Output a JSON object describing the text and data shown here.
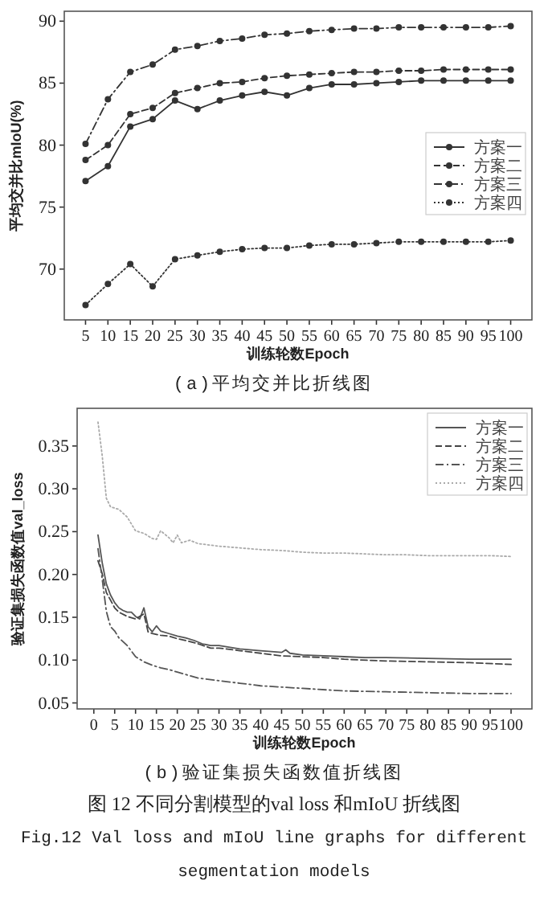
{
  "chart_data": [
    {
      "type": "line",
      "title": "(a)平均交并比折线图",
      "xlabel": "训练轮数Epoch",
      "ylabel": "平均交并比mIoU(%)",
      "x": [
        5,
        10,
        15,
        20,
        25,
        30,
        35,
        40,
        45,
        50,
        55,
        60,
        65,
        70,
        75,
        80,
        85,
        90,
        95,
        100
      ],
      "xlim": [
        0.25,
        104.75
      ],
      "xticks": [
        5,
        10,
        15,
        20,
        25,
        30,
        35,
        40,
        45,
        50,
        55,
        60,
        65,
        70,
        75,
        80,
        85,
        90,
        95,
        100
      ],
      "ylim": [
        65.9,
        90.8
      ],
      "yticks": [
        70,
        75,
        80,
        85,
        90
      ],
      "legend": "right",
      "marker": "circle",
      "series": [
        {
          "name": "方案一",
          "color": "#333333",
          "line_style": "solid",
          "values": [
            77.1,
            78.3,
            81.5,
            82.1,
            83.6,
            82.9,
            83.6,
            84.0,
            84.3,
            84.0,
            84.6,
            84.9,
            84.9,
            85.0,
            85.1,
            85.2,
            85.2,
            85.2,
            85.2,
            85.2
          ]
        },
        {
          "name": "方案二",
          "color": "#333333",
          "line_style": "dashed",
          "values": [
            78.8,
            80.0,
            82.5,
            83.0,
            84.2,
            84.6,
            85.0,
            85.1,
            85.4,
            85.6,
            85.7,
            85.8,
            85.9,
            85.9,
            86.0,
            86.0,
            86.1,
            86.1,
            86.1,
            86.1
          ]
        },
        {
          "name": "方案三",
          "color": "#333333",
          "line_style": "dashdot",
          "values": [
            80.1,
            83.7,
            85.9,
            86.5,
            87.7,
            88.0,
            88.4,
            88.6,
            88.9,
            89.0,
            89.2,
            89.3,
            89.4,
            89.4,
            89.5,
            89.5,
            89.5,
            89.5,
            89.5,
            89.6
          ]
        },
        {
          "name": "方案四",
          "color": "#333333",
          "line_style": "dotted",
          "values": [
            67.1,
            68.8,
            70.4,
            68.6,
            70.8,
            71.1,
            71.4,
            71.6,
            71.7,
            71.7,
            71.9,
            72.0,
            72.0,
            72.1,
            72.2,
            72.2,
            72.2,
            72.2,
            72.2,
            72.3
          ]
        }
      ]
    },
    {
      "type": "line",
      "title": "(b)验证集损失函数值折线图",
      "xlabel": "训练轮数Epoch",
      "ylabel": "验证集损失函数值val_loss",
      "xlim": [
        -4,
        105
      ],
      "xticks": [
        0,
        5,
        10,
        15,
        20,
        25,
        30,
        35,
        40,
        45,
        50,
        55,
        60,
        65,
        70,
        75,
        80,
        85,
        90,
        95,
        100
      ],
      "ylim": [
        0.043,
        0.394
      ],
      "yticks": [
        {
          "value": 0.05,
          "label": "0.05"
        },
        {
          "value": 0.1,
          "label": "0.10"
        },
        {
          "value": 0.15,
          "label": "0.15"
        },
        {
          "value": 0.2,
          "label": "0.20"
        },
        {
          "value": 0.25,
          "label": "0.25"
        },
        {
          "value": 0.3,
          "label": "0.30"
        },
        {
          "value": 0.35,
          "label": "0.35"
        }
      ],
      "legend": "top right",
      "annotations": [
        "图 12 不同分割模型的val loss 和mIoU 折线图",
        "Fig.12 Val loss and mIoU line graphs for different segmentation models"
      ],
      "series": [
        {
          "name": "方案一",
          "color": "#555555",
          "line_style": "solid",
          "x": [
            1,
            2,
            3,
            4,
            5,
            6,
            7,
            8,
            9,
            10,
            11,
            12,
            13,
            14,
            15,
            16,
            18,
            20,
            22,
            24,
            26,
            28,
            30,
            35,
            40,
            45,
            46,
            47,
            50,
            55,
            60,
            65,
            70,
            80,
            90,
            100
          ],
          "values": [
            0.246,
            0.214,
            0.189,
            0.176,
            0.167,
            0.161,
            0.158,
            0.156,
            0.156,
            0.151,
            0.148,
            0.161,
            0.139,
            0.133,
            0.14,
            0.134,
            0.131,
            0.128,
            0.126,
            0.123,
            0.119,
            0.117,
            0.117,
            0.113,
            0.111,
            0.109,
            0.112,
            0.108,
            0.106,
            0.105,
            0.104,
            0.103,
            0.103,
            0.102,
            0.101,
            0.101
          ]
        },
        {
          "name": "方案二",
          "color": "#444444",
          "line_style": "dashed",
          "x": [
            1,
            2,
            3,
            4,
            5,
            6,
            8,
            10,
            12,
            13,
            14,
            16,
            18,
            20,
            22,
            25,
            28,
            30,
            35,
            40,
            45,
            50,
            55,
            60,
            70,
            80,
            90,
            100
          ],
          "values": [
            0.216,
            0.201,
            0.179,
            0.17,
            0.161,
            0.156,
            0.151,
            0.148,
            0.154,
            0.133,
            0.131,
            0.129,
            0.128,
            0.125,
            0.123,
            0.119,
            0.114,
            0.114,
            0.111,
            0.108,
            0.105,
            0.104,
            0.103,
            0.101,
            0.099,
            0.098,
            0.097,
            0.095
          ]
        },
        {
          "name": "方案三",
          "color": "#555555",
          "line_style": "dashdot",
          "x": [
            1,
            2,
            3,
            4,
            5,
            6,
            8,
            10,
            12,
            14,
            16,
            18,
            20,
            25,
            30,
            35,
            40,
            50,
            60,
            70,
            80,
            90,
            100
          ],
          "values": [
            0.23,
            0.195,
            0.157,
            0.139,
            0.134,
            0.126,
            0.117,
            0.104,
            0.098,
            0.094,
            0.091,
            0.089,
            0.086,
            0.079,
            0.076,
            0.073,
            0.07,
            0.067,
            0.064,
            0.063,
            0.062,
            0.061,
            0.061
          ]
        },
        {
          "name": "方案四",
          "color": "#aaaaaa",
          "line_style": "dotted",
          "x": [
            1,
            2,
            3,
            4,
            6,
            8,
            10,
            12,
            14,
            15,
            16,
            18,
            19,
            20,
            21,
            23,
            25,
            30,
            35,
            40,
            45,
            50,
            55,
            60,
            65,
            70,
            75,
            80,
            85,
            90,
            95,
            100
          ],
          "values": [
            0.378,
            0.339,
            0.289,
            0.279,
            0.276,
            0.267,
            0.251,
            0.248,
            0.242,
            0.241,
            0.251,
            0.243,
            0.237,
            0.246,
            0.237,
            0.24,
            0.236,
            0.233,
            0.231,
            0.229,
            0.228,
            0.226,
            0.225,
            0.225,
            0.224,
            0.223,
            0.223,
            0.222,
            0.222,
            0.222,
            0.222,
            0.221
          ]
        }
      ]
    }
  ]
}
